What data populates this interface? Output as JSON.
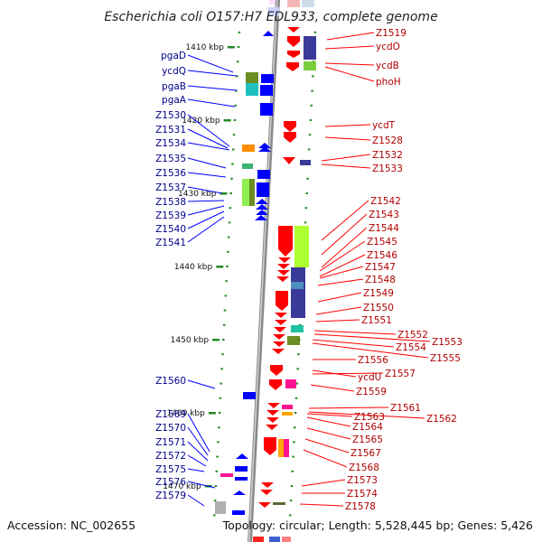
{
  "title": "Escherichia coli O157:H7 EDL933, complete genome",
  "footer": {
    "accession": "Accession: NC_002655",
    "topology": "Topology: circular; Length: 5,528,445 bp; Genes: 5,426"
  },
  "colors": {
    "forward": "#0000ff",
    "reverse": "#ff0000",
    "forward_label": "#00008b",
    "reverse_label": "#b00000",
    "backbone": "#888888",
    "tick": "#228b22"
  },
  "scale": {
    "ticks": [
      {
        "label": "1410 kbp",
        "kbp": 1410
      },
      {
        "label": "1420 kbp",
        "kbp": 1420
      },
      {
        "label": "1430 kbp",
        "kbp": 1430
      },
      {
        "label": "1440 kbp",
        "kbp": 1440
      },
      {
        "label": "1450 kbp",
        "kbp": 1450
      },
      {
        "label": "1460 kbp",
        "kbp": 1460
      },
      {
        "label": "1470 kbp",
        "kbp": 1470
      }
    ]
  },
  "forward_genes": [
    {
      "label": "pgaD",
      "kbp": 1413.0
    },
    {
      "label": "ycdQ",
      "kbp": 1414.5
    },
    {
      "label": "pgaB",
      "kbp": 1416.0
    },
    {
      "label": "pgaA",
      "kbp": 1418.0
    },
    {
      "label": "Z1530",
      "kbp": 1422.3
    },
    {
      "label": "Z1531",
      "kbp": 1422.8
    },
    {
      "label": "Z1534",
      "kbp": 1423.3
    },
    {
      "label": "Z1535",
      "kbp": 1425.5
    },
    {
      "label": "Z1536",
      "kbp": 1426.5
    },
    {
      "label": "Z1537",
      "kbp": 1428.0
    },
    {
      "label": "Z1538",
      "kbp": 1430.0
    },
    {
      "label": "Z1539",
      "kbp": 1430.6
    },
    {
      "label": "Z1540",
      "kbp": 1431.2
    },
    {
      "label": "Z1541",
      "kbp": 1431.8
    },
    {
      "label": "Z1560",
      "kbp": 1457.5
    },
    {
      "label": "Z1569",
      "kbp": 1465.2
    },
    {
      "label": "Z1570",
      "kbp": 1465.8
    },
    {
      "label": "Z1571",
      "kbp": 1466.3
    },
    {
      "label": "Z1572",
      "kbp": 1466.8
    },
    {
      "label": "Z1575",
      "kbp": 1467.3
    },
    {
      "label": "Z1576",
      "kbp": 1469.5
    },
    {
      "label": "Z1579",
      "kbp": 1472.0
    }
  ],
  "reverse_genes": [
    {
      "label": "Z1519",
      "kbp": 1408.5
    },
    {
      "label": "ycdO",
      "kbp": 1409.5
    },
    {
      "label": "ycdB",
      "kbp": 1411.0
    },
    {
      "label": "phoH",
      "kbp": 1412.0
    },
    {
      "label": "ycdT",
      "kbp": 1420.5
    },
    {
      "label": "Z1528",
      "kbp": 1421.5
    },
    {
      "label": "Z1532",
      "kbp": 1425.0
    },
    {
      "label": "Z1533",
      "kbp": 1425.5
    },
    {
      "label": "Z1542",
      "kbp": 1436.5
    },
    {
      "label": "Z1543",
      "kbp": 1437.2
    },
    {
      "label": "Z1544",
      "kbp": 1438.0
    },
    {
      "label": "Z1545",
      "kbp": 1438.8
    },
    {
      "label": "Z1546",
      "kbp": 1439.5
    },
    {
      "label": "Z1547",
      "kbp": 1440.2
    },
    {
      "label": "Z1548",
      "kbp": 1440.8
    },
    {
      "label": "Z1549",
      "kbp": 1442.5
    },
    {
      "label": "Z1550",
      "kbp": 1443.8
    },
    {
      "label": "Z1551",
      "kbp": 1445.2
    },
    {
      "label": "Z1552",
      "kbp": 1446.5
    },
    {
      "label": "Z1553",
      "kbp": 1447.2
    },
    {
      "label": "Z1554",
      "kbp": 1447.8
    },
    {
      "label": "Z1555",
      "kbp": 1449.5
    },
    {
      "label": "Z1556",
      "kbp": 1451.5
    },
    {
      "label": "ycdU",
      "kbp": 1453.5
    },
    {
      "label": "Z1557",
      "kbp": 1453.8
    },
    {
      "label": "Z1559",
      "kbp": 1456.0
    },
    {
      "label": "Z1561",
      "kbp": 1460.2
    },
    {
      "label": "Z1562",
      "kbp": 1460.8
    },
    {
      "label": "Z1563",
      "kbp": 1461.3
    },
    {
      "label": "Z1564",
      "kbp": 1461.9
    },
    {
      "label": "Z1565",
      "kbp": 1462.6
    },
    {
      "label": "Z1567",
      "kbp": 1464.0
    },
    {
      "label": "Z1568",
      "kbp": 1466.0
    },
    {
      "label": "Z1573",
      "kbp": 1470.0
    },
    {
      "label": "Z1574",
      "kbp": 1470.8
    },
    {
      "label": "Z1578",
      "kbp": 1471.8
    }
  ]
}
